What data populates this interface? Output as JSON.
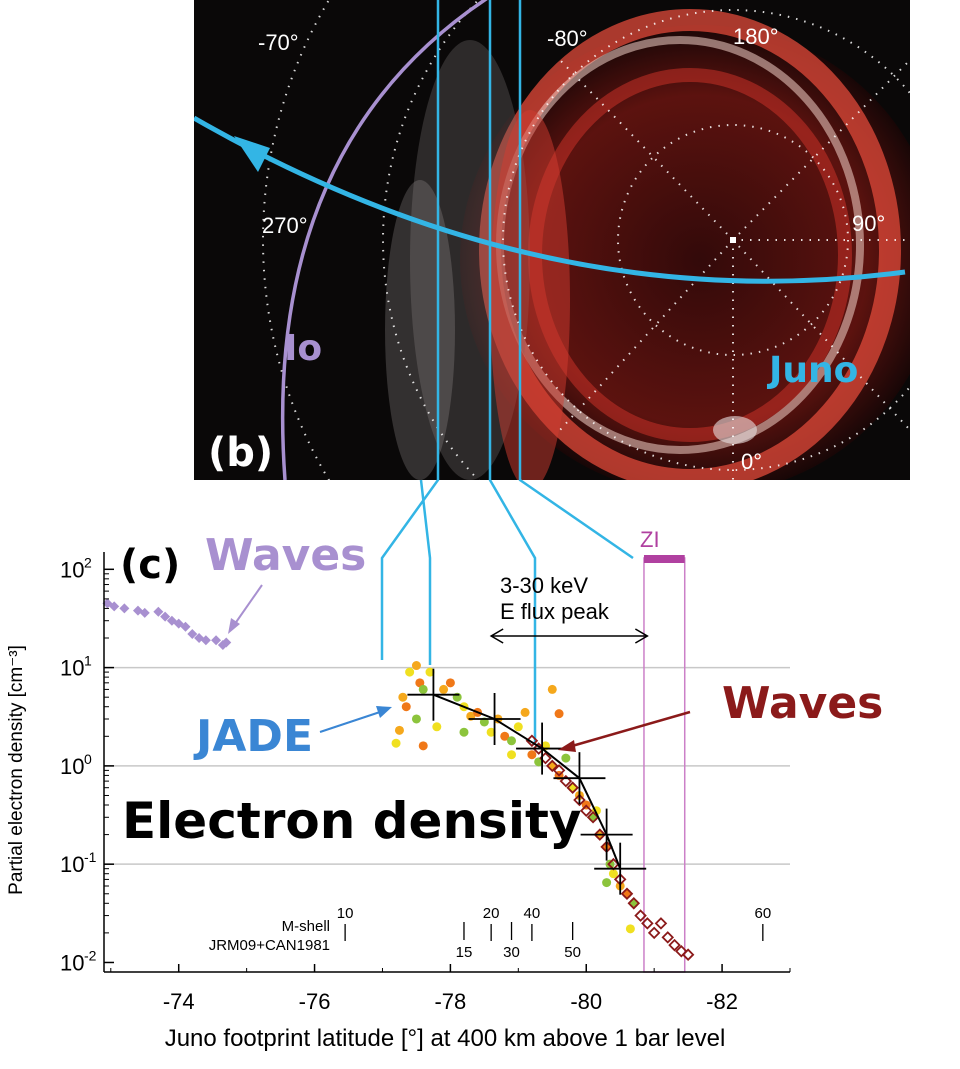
{
  "panel_b": {
    "label": "(b)",
    "longitude_labels": [
      "-70°",
      "-80°",
      "180°",
      "270°",
      "90°",
      "0°"
    ],
    "io_label": "Io",
    "juno_label": "Juno",
    "colors": {
      "io": "#a890d0",
      "juno": "#33b5e5",
      "background": "#0a0808",
      "aurora": "#d83a2e"
    }
  },
  "chart_data": {
    "type": "scatter",
    "panel_label": "(c)",
    "xlabel": "Juno footprint latitude [°] at 400 km above 1 bar level",
    "ylabel": "Partial electron density [cm⁻³]",
    "xlim": [
      -72.9,
      -83.0
    ],
    "ylim": [
      0.008,
      150
    ],
    "y_scale": "log",
    "x_ticks": [
      -74,
      -76,
      -78,
      -80,
      -82
    ],
    "x_tick_labels": [
      "-74",
      "-76",
      "-78",
      "-80",
      "-82"
    ],
    "y_ticks": [
      0.01,
      0.1,
      1,
      10,
      100
    ],
    "y_tick_labels": [
      {
        "base": "10",
        "exp": "-2"
      },
      {
        "base": "10",
        "exp": "-1"
      },
      {
        "base": "10",
        "exp": "0"
      },
      {
        "base": "10",
        "exp": "1"
      },
      {
        "base": "10",
        "exp": "2"
      }
    ],
    "grid": "horizontal at 0.1, 1, 10",
    "annotations": {
      "waves_top": "Waves",
      "waves_right": "Waves",
      "jade": "JADE",
      "density": "Electron density",
      "flux_peak_line1": "3-30 keV",
      "flux_peak_line2": "E flux peak",
      "zi": "ZI",
      "mshell_label": "M-shell",
      "model_label": "JRM09+CAN1981"
    },
    "flux_peak_range": [
      -78.6,
      -80.9
    ],
    "zi_range": [
      -80.85,
      -81.45
    ],
    "m_shell_ticks": [
      {
        "label": "10",
        "lat": -76.45,
        "row": "upper"
      },
      {
        "label": "15",
        "lat": -78.2,
        "row": "lower"
      },
      {
        "label": "20",
        "lat": -78.6,
        "row": "upper"
      },
      {
        "label": "30",
        "lat": -78.9,
        "row": "lower"
      },
      {
        "label": "40",
        "lat": -79.2,
        "row": "upper"
      },
      {
        "label": "50",
        "lat": -79.8,
        "row": "lower"
      },
      {
        "label": "60",
        "lat": -82.6,
        "row": "upper"
      }
    ],
    "series": [
      {
        "kind": "waves-early",
        "color": "#a890d0",
        "points": [
          [
            -72.95,
            45
          ],
          [
            -73.05,
            42
          ],
          [
            -73.2,
            40
          ],
          [
            -73.4,
            38
          ],
          [
            -73.5,
            36
          ],
          [
            -73.7,
            37
          ],
          [
            -73.8,
            33
          ],
          [
            -73.9,
            30
          ],
          [
            -74.0,
            28
          ],
          [
            -74.1,
            26
          ],
          [
            -74.2,
            22
          ],
          [
            -74.3,
            20
          ],
          [
            -74.4,
            19
          ],
          [
            -74.55,
            19
          ],
          [
            -74.65,
            17
          ],
          [
            -74.7,
            18
          ]
        ]
      },
      {
        "kind": "jade-binned",
        "color": "#000000",
        "points": [
          [
            -77.75,
            5.3
          ],
          [
            -78.65,
            3.0
          ],
          [
            -79.35,
            1.5
          ],
          [
            -79.9,
            0.75
          ],
          [
            -80.3,
            0.2
          ],
          [
            -80.5,
            0.09
          ]
        ]
      },
      {
        "kind": "jade-points",
        "colors": [
          "#f0e020",
          "#f5a81c",
          "#f07818",
          "#8cc43c"
        ],
        "points": [
          [
            -77.4,
            9
          ],
          [
            -77.5,
            10.5
          ],
          [
            -77.55,
            7
          ],
          [
            -77.6,
            6
          ],
          [
            -77.7,
            9
          ],
          [
            -77.3,
            5
          ],
          [
            -77.35,
            4
          ],
          [
            -77.5,
            3
          ],
          [
            -77.8,
            2.5
          ],
          [
            -77.9,
            6
          ],
          [
            -78.0,
            7
          ],
          [
            -78.1,
            5
          ],
          [
            -78.2,
            4
          ],
          [
            -78.3,
            3.2
          ],
          [
            -78.4,
            3.5
          ],
          [
            -78.5,
            2.8
          ],
          [
            -78.6,
            2.2
          ],
          [
            -78.7,
            3.0
          ],
          [
            -78.8,
            2.0
          ],
          [
            -78.9,
            1.8
          ],
          [
            -79.0,
            2.5
          ],
          [
            -79.1,
            3.5
          ],
          [
            -79.2,
            1.3
          ],
          [
            -79.3,
            1.1
          ],
          [
            -79.4,
            1.6
          ],
          [
            -79.5,
            1.0
          ],
          [
            -79.6,
            0.8
          ],
          [
            -79.7,
            1.2
          ],
          [
            -79.8,
            0.6
          ],
          [
            -79.9,
            0.5
          ],
          [
            -80.0,
            0.4
          ],
          [
            -80.1,
            0.3
          ],
          [
            -80.15,
            0.35
          ],
          [
            -80.2,
            0.2
          ],
          [
            -80.3,
            0.15
          ],
          [
            -80.35,
            0.1
          ],
          [
            -80.4,
            0.08
          ],
          [
            -80.5,
            0.06
          ],
          [
            -80.6,
            0.05
          ],
          [
            -80.7,
            0.04
          ],
          [
            -77.2,
            1.7
          ],
          [
            -77.25,
            2.3
          ],
          [
            -77.6,
            1.6
          ],
          [
            -78.2,
            2.2
          ],
          [
            -78.9,
            1.3
          ],
          [
            -79.5,
            6
          ],
          [
            -79.6,
            3.4
          ],
          [
            -80.3,
            0.065
          ],
          [
            -80.65,
            0.022
          ]
        ]
      },
      {
        "kind": "waves-late",
        "color": "#8b1a1a",
        "points": [
          [
            -79.2,
            1.8
          ],
          [
            -79.3,
            1.5
          ],
          [
            -79.4,
            1.2
          ],
          [
            -79.5,
            1.0
          ],
          [
            -79.6,
            0.9
          ],
          [
            -79.7,
            0.7
          ],
          [
            -79.8,
            0.6
          ],
          [
            -79.9,
            0.45
          ],
          [
            -80.0,
            0.35
          ],
          [
            -80.1,
            0.3
          ],
          [
            -80.2,
            0.2
          ],
          [
            -80.3,
            0.15
          ],
          [
            -80.4,
            0.1
          ],
          [
            -80.5,
            0.07
          ],
          [
            -80.6,
            0.05
          ],
          [
            -80.7,
            0.04
          ],
          [
            -80.8,
            0.03
          ],
          [
            -80.9,
            0.025
          ],
          [
            -81.0,
            0.02
          ],
          [
            -81.1,
            0.025
          ],
          [
            -81.2,
            0.018
          ],
          [
            -81.3,
            0.015
          ],
          [
            -81.4,
            0.013
          ],
          [
            -81.5,
            0.012
          ]
        ]
      }
    ]
  }
}
